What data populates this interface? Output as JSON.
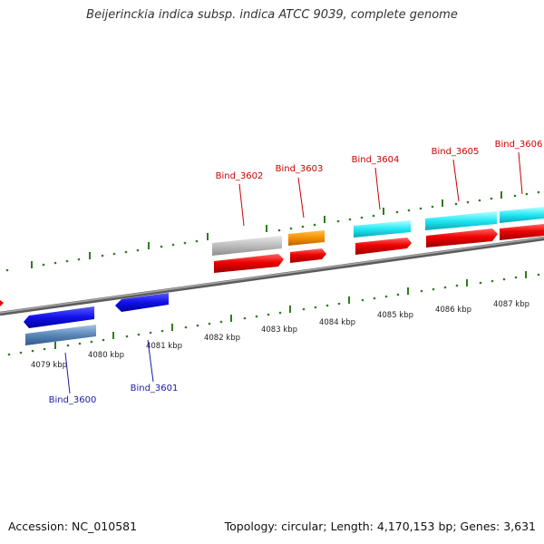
{
  "title": "Beijerinckia indica subsp. indica ATCC 9039, complete genome",
  "footer": {
    "accession": "Accession: NC_010581",
    "summary": "Topology: circular; Length: 4,170,153 bp; Genes: 3,631"
  },
  "colors": {
    "backbone": "#8a8a8a",
    "tick": "#2e7d1f",
    "top_label": "#cc0000",
    "bottom_label": "#1a1aa6"
  },
  "chart_data": {
    "type": "genome_map",
    "units": "kbp",
    "ticks_kbp": [
      "4079 kbp",
      "4080 kbp",
      "4081 kbp",
      "4082 kbp",
      "4083 kbp",
      "4084 kbp",
      "4085 kbp",
      "4086 kbp",
      "4087 kbp"
    ],
    "genes": [
      {
        "label": "Bind_3600",
        "strand": "minus"
      },
      {
        "label": "Bind_3601",
        "strand": "minus"
      },
      {
        "label": "Bind_3602",
        "strand": "plus"
      },
      {
        "label": "Bind_3603",
        "strand": "plus"
      },
      {
        "label": "Bind_3604",
        "strand": "plus"
      },
      {
        "label": "Bind_3605",
        "strand": "plus"
      },
      {
        "label": "Bind_3606",
        "strand": "plus"
      }
    ]
  }
}
